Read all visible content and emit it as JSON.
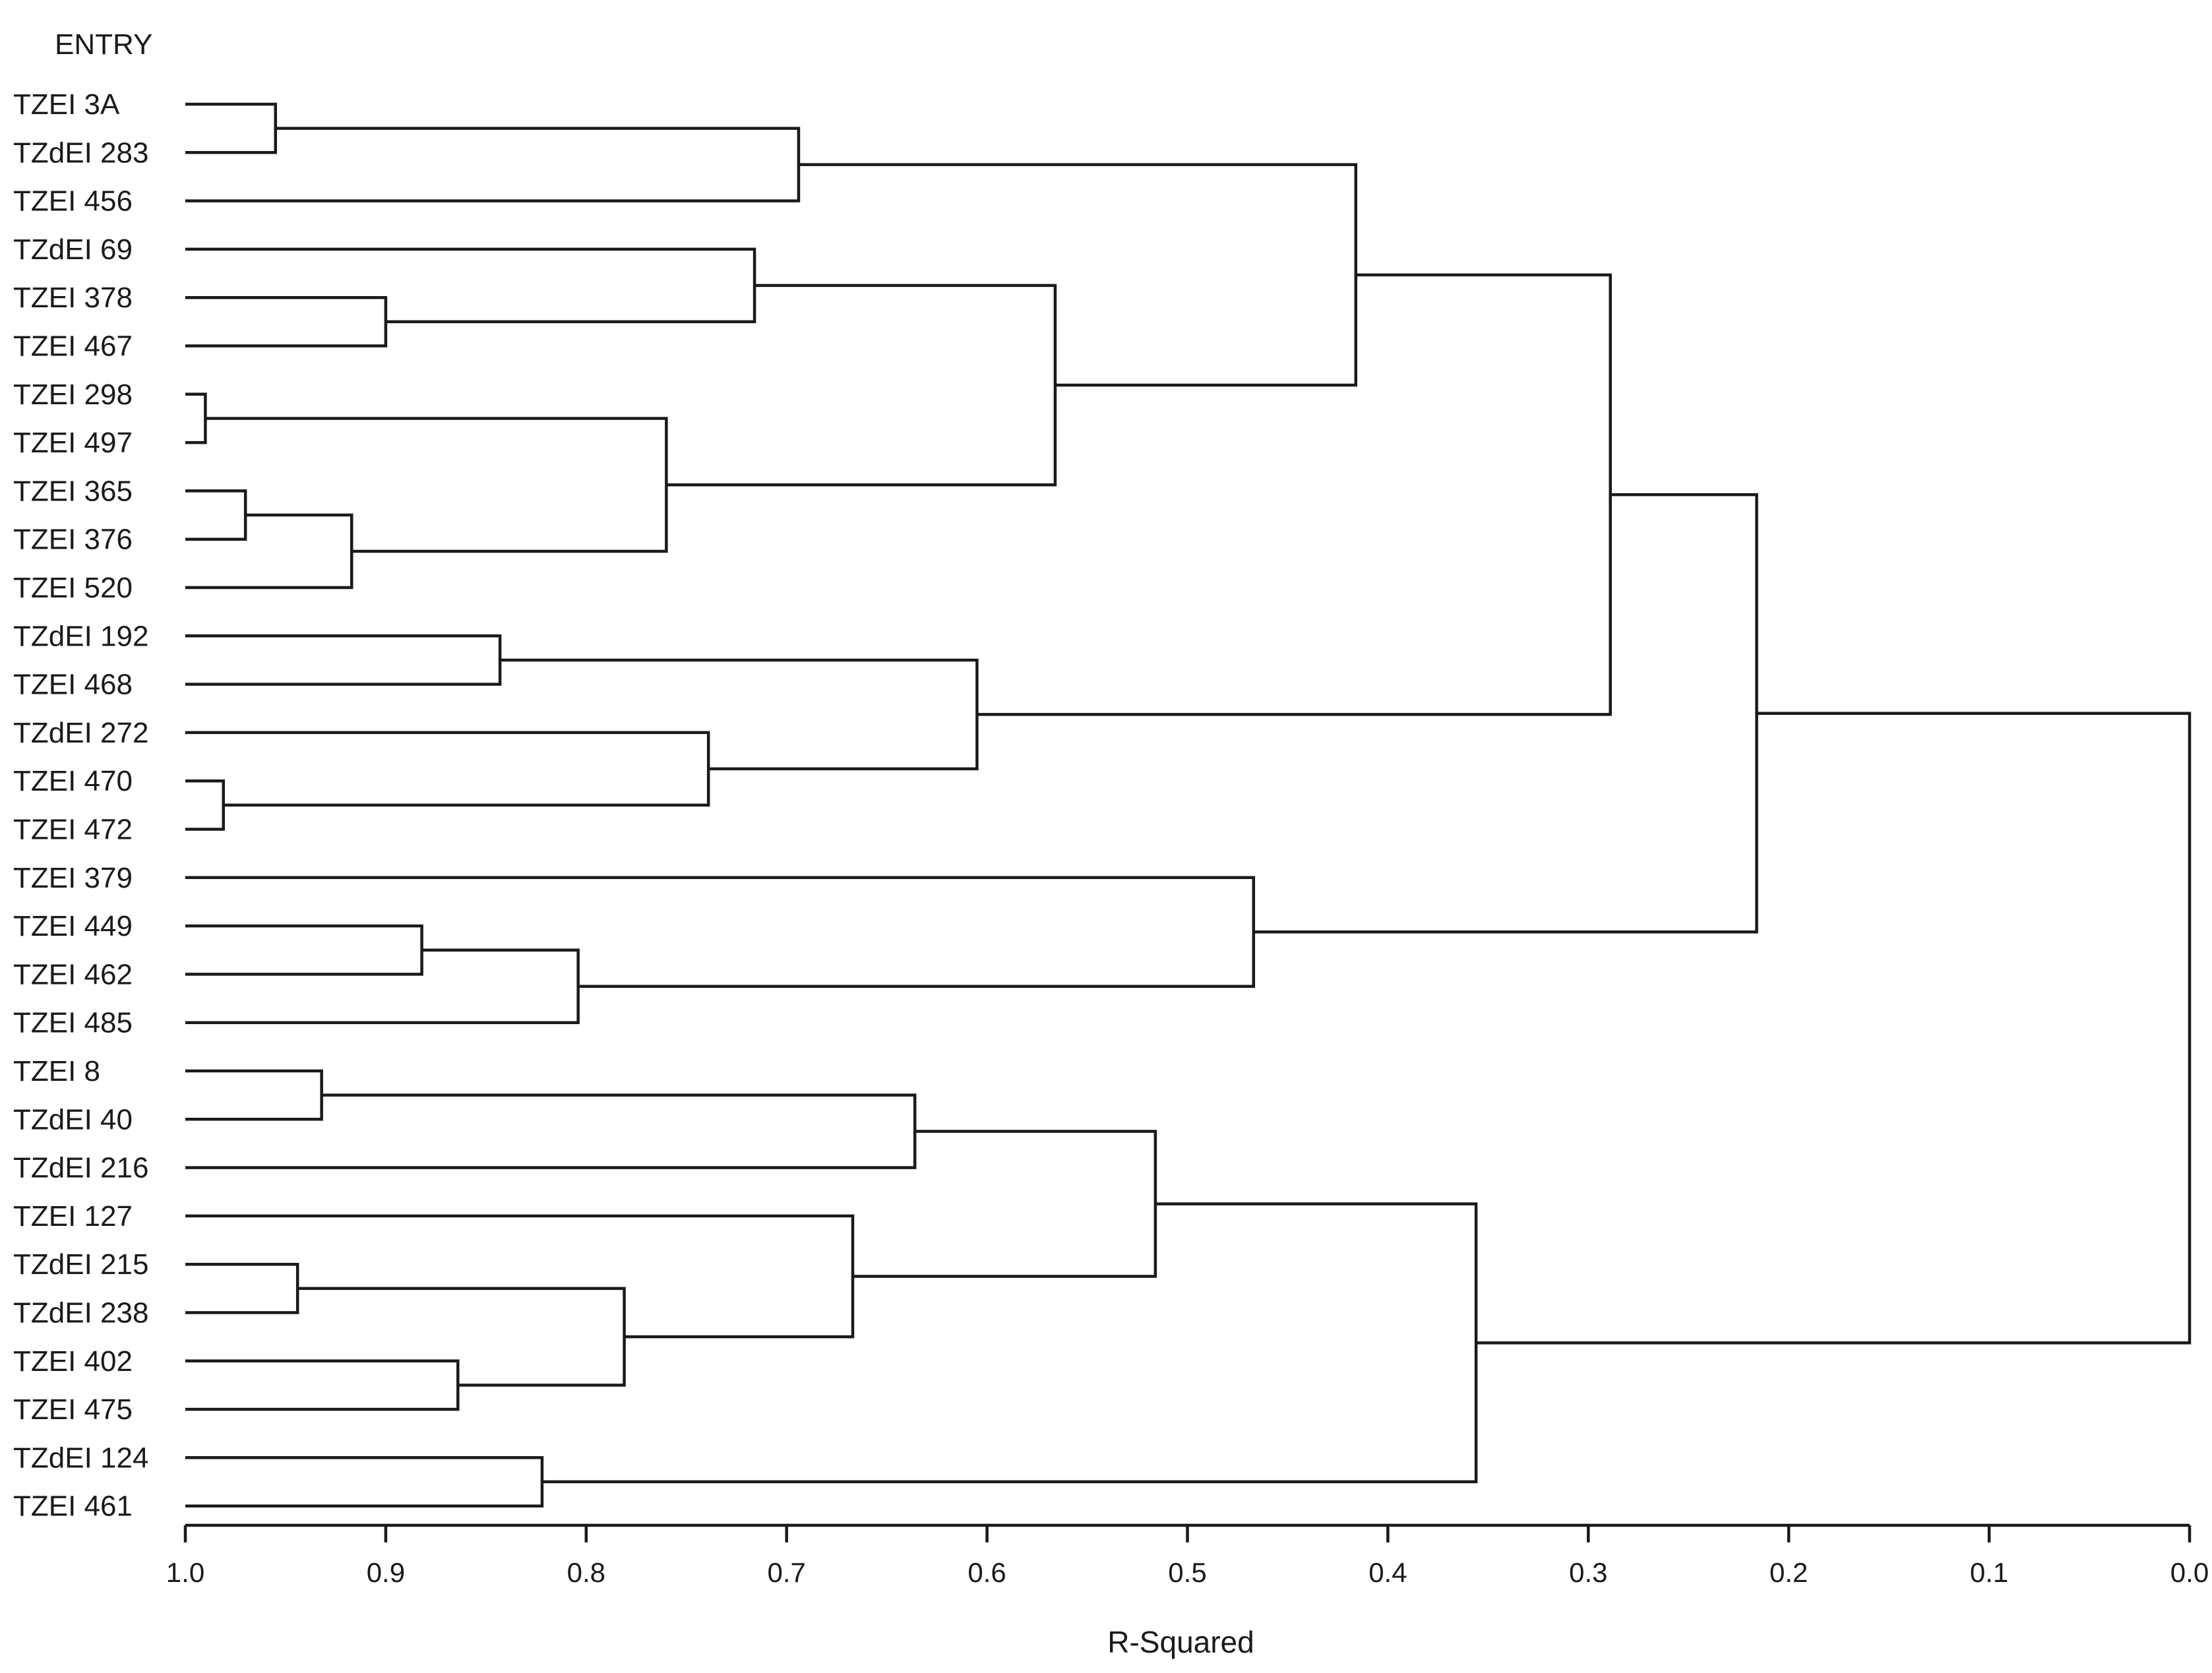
{
  "chart_data": {
    "type": "dendrogram",
    "header_label": "ENTRY",
    "xlabel": "R-Squared",
    "xlim": [
      1.0,
      0.0
    ],
    "xticks": [
      "1.0",
      "0.9",
      "0.8",
      "0.7",
      "0.6",
      "0.5",
      "0.4",
      "0.3",
      "0.2",
      "0.1",
      "0.0"
    ],
    "leaves": [
      "TZEI 3A",
      "TZdEI 283",
      "TZEI 456",
      "TZdEI 69",
      "TZEI 378",
      "TZEI 467",
      "TZEI 298",
      "TZEI 497",
      "TZEI 365",
      "TZEI 376",
      "TZEI 520",
      "TZdEI 192",
      "TZEI 468",
      "TZdEI 272",
      "TZEI 470",
      "TZEI 472",
      "TZEI 379",
      "TZEI 449",
      "TZEI 462",
      "TZEI 485",
      "TZEI 8",
      "TZdEI 40",
      "TZdEI 216",
      "TZEI 127",
      "TZdEI 215",
      "TZdEI 238",
      "TZEI 402",
      "TZEI 475",
      "TZdEI 124",
      "TZEI 461"
    ],
    "merges": [
      {
        "id": "m1",
        "a": "L0",
        "b": "L1",
        "r2": 0.955
      },
      {
        "id": "m2",
        "a": "m1",
        "b": "L2",
        "r2": 0.694
      },
      {
        "id": "m3",
        "a": "L4",
        "b": "L5",
        "r2": 0.9
      },
      {
        "id": "m4",
        "a": "L3",
        "b": "m3",
        "r2": 0.716
      },
      {
        "id": "m5",
        "a": "L6",
        "b": "L7",
        "r2": 0.99
      },
      {
        "id": "m6",
        "a": "L8",
        "b": "L9",
        "r2": 0.97
      },
      {
        "id": "m7",
        "a": "m6",
        "b": "L10",
        "r2": 0.917
      },
      {
        "id": "m8",
        "a": "m5",
        "b": "m7",
        "r2": 0.76
      },
      {
        "id": "m9",
        "a": "m4",
        "b": "m8",
        "r2": 0.566
      },
      {
        "id": "m10",
        "a": "m2",
        "b": "m9",
        "r2": 0.416
      },
      {
        "id": "m11",
        "a": "L11",
        "b": "L12",
        "r2": 0.843
      },
      {
        "id": "m12",
        "a": "L14",
        "b": "L15",
        "r2": 0.981
      },
      {
        "id": "m13",
        "a": "L13",
        "b": "m12",
        "r2": 0.739
      },
      {
        "id": "m14",
        "a": "m11",
        "b": "m13",
        "r2": 0.605
      },
      {
        "id": "m15",
        "a": "m10",
        "b": "m14",
        "r2": 0.289
      },
      {
        "id": "m16",
        "a": "L17",
        "b": "L18",
        "r2": 0.882
      },
      {
        "id": "m17",
        "a": "m16",
        "b": "L19",
        "r2": 0.804
      },
      {
        "id": "m18",
        "a": "L16",
        "b": "m17",
        "r2": 0.467
      },
      {
        "id": "m19",
        "a": "m15",
        "b": "m18",
        "r2": 0.216
      },
      {
        "id": "m20",
        "a": "L20",
        "b": "L21",
        "r2": 0.932
      },
      {
        "id": "m21",
        "a": "m20",
        "b": "L22",
        "r2": 0.636
      },
      {
        "id": "m22",
        "a": "L24",
        "b": "L25",
        "r2": 0.944
      },
      {
        "id": "m23",
        "a": "L26",
        "b": "L27",
        "r2": 0.864
      },
      {
        "id": "m24",
        "a": "m22",
        "b": "m23",
        "r2": 0.781
      },
      {
        "id": "m25",
        "a": "L23",
        "b": "m24",
        "r2": 0.667
      },
      {
        "id": "m26",
        "a": "m21",
        "b": "m25",
        "r2": 0.516
      },
      {
        "id": "m27",
        "a": "L28",
        "b": "L29",
        "r2": 0.822
      },
      {
        "id": "m28",
        "a": "m26",
        "b": "m27",
        "r2": 0.356
      },
      {
        "id": "m29",
        "a": "m19",
        "b": "m28",
        "r2": 0.0
      }
    ]
  }
}
